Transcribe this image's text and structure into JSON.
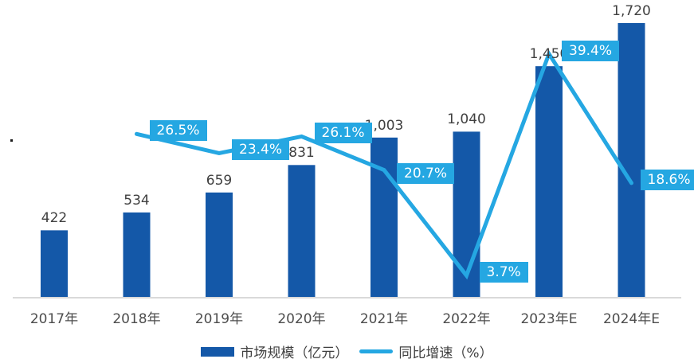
{
  "chart_data": {
    "type": "bar+line combo",
    "categories": [
      "2017年",
      "2018年",
      "2019年",
      "2020年",
      "2021年",
      "2022年",
      "2023年E",
      "2024年E"
    ],
    "series": [
      {
        "name": "市场规模（亿元）",
        "type": "bar",
        "values": [
          422,
          534,
          659,
          831,
          1003,
          1040,
          1450,
          1720
        ],
        "labels": [
          "422",
          "534",
          "659",
          "831",
          "1,003",
          "1,040",
          "1,450",
          "1,720"
        ],
        "color": "#1458A8"
      },
      {
        "name": "同比增速（%）",
        "type": "line",
        "values": [
          null,
          26.5,
          23.4,
          26.1,
          20.7,
          3.7,
          39.4,
          18.6
        ],
        "labels": [
          null,
          "26.5%",
          "23.4%",
          "26.1%",
          "20.7%",
          "3.7%",
          "39.4%",
          "18.6%"
        ],
        "color": "#25A7E2"
      }
    ],
    "title": "",
    "xlabel": "",
    "ylabel": "",
    "legend_position": "bottom-center",
    "grid": false,
    "axis_line_color": "#D9D9D9",
    "label_color": "#404040",
    "badge_text_color": "#FFFFFF",
    "bar_ylim": [
      0,
      1720
    ],
    "notes": "value label 1,450 is partially covered by the 39.4% badge"
  }
}
